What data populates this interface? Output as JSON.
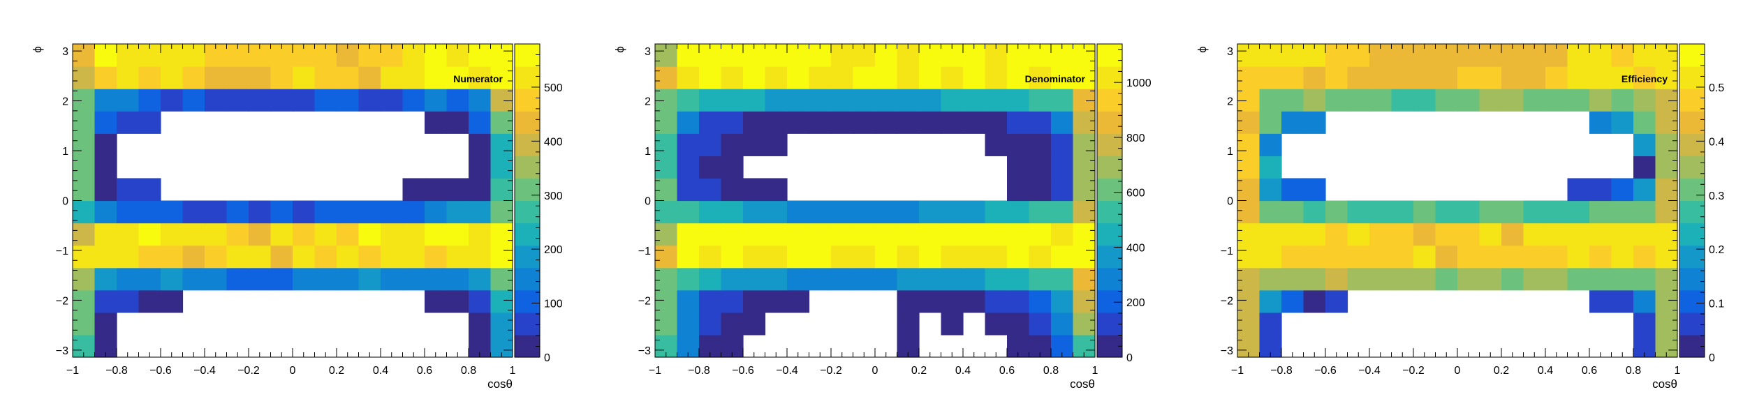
{
  "colors": {
    "palette": [
      "#352a87",
      "#2743c9",
      "#0f63e0",
      "#0f82d4",
      "#1498c9",
      "#1cb0b8",
      "#38bda0",
      "#6cc27c",
      "#a1bd5e",
      "#ccb748",
      "#ecb936",
      "#fbcd28",
      "#f6e516",
      "#f9fb0e"
    ],
    "frame": "#000000",
    "background": "#ffffff"
  },
  "chart_data": [
    {
      "type": "heatmap",
      "title": "Numerator",
      "xlabel": "cosθ",
      "ylabel": "ϕ",
      "xlim": [
        -1,
        1
      ],
      "ylim": [
        -3.14159,
        3.14159
      ],
      "x_ticks": [
        -1,
        -0.8,
        -0.6,
        -0.4,
        -0.2,
        0,
        0.2,
        0.4,
        0.6,
        0.8,
        1
      ],
      "x_tick_labels": [
        "−1",
        "−0.8",
        "−0.6",
        "−0.4",
        "−0.2",
        "0",
        "0.2",
        "0.4",
        "0.6",
        "0.8",
        "1"
      ],
      "y_ticks": [
        -3,
        -2,
        -1,
        0,
        1,
        2,
        3
      ],
      "y_tick_labels": [
        "−3",
        "−2",
        "−1",
        "0",
        "1",
        "2",
        "3"
      ],
      "zlim": [
        0,
        580
      ],
      "z_ticks": [
        0,
        100,
        200,
        300,
        400,
        500
      ],
      "z_tick_labels": [
        "0",
        "100",
        "200",
        "300",
        "400",
        "500"
      ],
      "bins_x": 20,
      "bins_y": 14,
      "values": [
        [
          280,
          30,
          0,
          0,
          0,
          0,
          0,
          0,
          0,
          0,
          0,
          0,
          0,
          0,
          0,
          0,
          0,
          0,
          30,
          180
        ],
        [
          300,
          30,
          0,
          0,
          0,
          0,
          0,
          0,
          0,
          0,
          0,
          0,
          0,
          0,
          0,
          0,
          0,
          0,
          30,
          190
        ],
        [
          330,
          60,
          60,
          30,
          30,
          0,
          0,
          0,
          0,
          0,
          0,
          0,
          0,
          0,
          0,
          0,
          30,
          30,
          60,
          240
        ],
        [
          340,
          170,
          160,
          150,
          180,
          150,
          130,
          120,
          120,
          110,
          150,
          140,
          140,
          170,
          160,
          160,
          150,
          160,
          200,
          300
        ],
        [
          500,
          520,
          500,
          480,
          470,
          450,
          480,
          500,
          530,
          440,
          520,
          480,
          500,
          470,
          500,
          520,
          470,
          520,
          500,
          560
        ],
        [
          400,
          530,
          510,
          550,
          500,
          520,
          500,
          470,
          440,
          500,
          460,
          510,
          460,
          570,
          500,
          530,
          550,
          560,
          510,
          580
        ],
        [
          240,
          160,
          120,
          110,
          120,
          80,
          80,
          100,
          80,
          90,
          80,
          110,
          110,
          100,
          100,
          110,
          130,
          170,
          180,
          300
        ],
        [
          320,
          30,
          60,
          60,
          0,
          0,
          0,
          0,
          0,
          0,
          0,
          0,
          0,
          0,
          0,
          30,
          30,
          30,
          30,
          260
        ],
        [
          310,
          30,
          0,
          0,
          0,
          0,
          0,
          0,
          0,
          0,
          0,
          0,
          0,
          0,
          0,
          0,
          0,
          0,
          30,
          230
        ],
        [
          300,
          30,
          0,
          0,
          0,
          0,
          0,
          0,
          0,
          0,
          0,
          0,
          0,
          0,
          0,
          0,
          0,
          0,
          30,
          240
        ],
        [
          300,
          100,
          60,
          60,
          0,
          0,
          0,
          0,
          0,
          0,
          0,
          0,
          0,
          0,
          0,
          0,
          40,
          30,
          90,
          330
        ],
        [
          330,
          140,
          130,
          100,
          80,
          100,
          80,
          50,
          60,
          80,
          80,
          100,
          120,
          80,
          80,
          120,
          130,
          110,
          160,
          380
        ],
        [
          390,
          480,
          500,
          470,
          520,
          470,
          440,
          450,
          440,
          460,
          510,
          490,
          460,
          440,
          500,
          520,
          560,
          540,
          510,
          580
        ],
        [
          430,
          540,
          530,
          530,
          520,
          500,
          470,
          460,
          460,
          470,
          480,
          470,
          450,
          460,
          480,
          530,
          550,
          520,
          540,
          580
        ]
      ]
    },
    {
      "type": "heatmap",
      "title": "Denominator",
      "xlabel": "cosθ",
      "ylabel": "ϕ",
      "xlim": [
        -1,
        1
      ],
      "ylim": [
        -3.14159,
        3.14159
      ],
      "x_ticks": [
        -1,
        -0.8,
        -0.6,
        -0.4,
        -0.2,
        0,
        0.2,
        0.4,
        0.6,
        0.8,
        1
      ],
      "x_tick_labels": [
        "−1",
        "−0.8",
        "−0.6",
        "−0.4",
        "−0.2",
        "0",
        "0.2",
        "0.4",
        "0.6",
        "0.8",
        "1"
      ],
      "y_ticks": [
        -3,
        -2,
        -1,
        0,
        1,
        2,
        3
      ],
      "y_tick_labels": [
        "−3",
        "−2",
        "−1",
        "0",
        "1",
        "2",
        "3"
      ],
      "zlim": [
        0,
        1140
      ],
      "z_ticks": [
        0,
        200,
        400,
        600,
        800,
        1000
      ],
      "z_tick_labels": [
        "0",
        "200",
        "400",
        "600",
        "800",
        "1000"
      ],
      "bins_x": 20,
      "bins_y": 14,
      "values": [
        [
          540,
          250,
          80,
          80,
          0,
          0,
          0,
          0,
          0,
          0,
          0,
          80,
          0,
          0,
          0,
          0,
          80,
          80,
          200,
          560
        ],
        [
          600,
          260,
          140,
          80,
          80,
          0,
          0,
          0,
          0,
          0,
          0,
          80,
          0,
          80,
          0,
          80,
          80,
          140,
          260,
          680
        ],
        [
          640,
          300,
          160,
          100,
          80,
          80,
          80,
          0,
          0,
          0,
          0,
          80,
          80,
          80,
          80,
          100,
          160,
          200,
          340,
          760
        ],
        [
          620,
          500,
          430,
          380,
          350,
          330,
          320,
          310,
          300,
          300,
          320,
          330,
          350,
          380,
          400,
          430,
          470,
          500,
          560,
          840
        ],
        [
          880,
          1080,
          1050,
          1060,
          1040,
          1050,
          1080,
          1060,
          1050,
          1040,
          1070,
          1040,
          1060,
          1050,
          1050,
          1040,
          1080,
          1030,
          1060,
          1140
        ],
        [
          720,
          1060,
          1100,
          1080,
          1120,
          1100,
          1080,
          1100,
          1090,
          1100,
          1080,
          1100,
          1120,
          1080,
          1070,
          1110,
          1100,
          1080,
          1050,
          1100
        ],
        [
          560,
          540,
          460,
          420,
          390,
          330,
          320,
          300,
          280,
          300,
          300,
          310,
          330,
          340,
          380,
          410,
          430,
          490,
          560,
          760
        ],
        [
          600,
          160,
          120,
          80,
          80,
          80,
          0,
          0,
          0,
          0,
          0,
          0,
          0,
          0,
          0,
          0,
          80,
          80,
          160,
          720
        ],
        [
          560,
          140,
          80,
          80,
          0,
          0,
          0,
          0,
          0,
          0,
          0,
          0,
          0,
          0,
          0,
          0,
          80,
          80,
          140,
          700
        ],
        [
          560,
          160,
          120,
          80,
          80,
          80,
          0,
          0,
          0,
          0,
          0,
          0,
          0,
          0,
          0,
          80,
          80,
          80,
          160,
          700
        ],
        [
          600,
          300,
          160,
          100,
          80,
          80,
          80,
          80,
          80,
          80,
          80,
          80,
          80,
          80,
          80,
          80,
          100,
          140,
          260,
          780
        ],
        [
          640,
          520,
          460,
          430,
          410,
          380,
          360,
          330,
          330,
          340,
          350,
          380,
          400,
          420,
          430,
          440,
          480,
          520,
          560,
          820
        ],
        [
          880,
          1040,
          1060,
          1050,
          1070,
          1050,
          1060,
          1040,
          1050,
          1070,
          1060,
          1040,
          1080,
          1050,
          1070,
          1050,
          1060,
          1040,
          1060,
          1140
        ],
        [
          720,
          1070,
          1080,
          1060,
          1080,
          1060,
          1070,
          1060,
          1040,
          1050,
          1060,
          1040,
          1060,
          1070,
          1060,
          1050,
          1060,
          1080,
          1060,
          1100
        ]
      ]
    },
    {
      "type": "heatmap",
      "title": "Efficiency",
      "xlabel": "cosθ",
      "ylabel": "ϕ",
      "xlim": [
        -1,
        1
      ],
      "ylim": [
        -3.14159,
        3.14159
      ],
      "x_ticks": [
        -1,
        -0.8,
        -0.6,
        -0.4,
        -0.2,
        0,
        0.2,
        0.4,
        0.6,
        0.8,
        1
      ],
      "x_tick_labels": [
        "−1",
        "−0.8",
        "−0.6",
        "−0.4",
        "−0.2",
        "0",
        "0.2",
        "0.4",
        "0.6",
        "0.8",
        "1"
      ],
      "y_ticks": [
        -3,
        -2,
        -1,
        0,
        1,
        2,
        3
      ],
      "y_tick_labels": [
        "−3",
        "−2",
        "−1",
        "0",
        "1",
        "2",
        "3"
      ],
      "zlim": [
        0,
        0.58
      ],
      "z_ticks": [
        0,
        0.1,
        0.2,
        0.3,
        0.4,
        0.5
      ],
      "z_tick_labels": [
        "0",
        "0.1",
        "0.2",
        "0.3",
        "0.4",
        "0.5"
      ],
      "bins_x": 20,
      "bins_y": 14,
      "values": [
        [
          0.38,
          0.06,
          0,
          0,
          0,
          0,
          0,
          0,
          0,
          0,
          0,
          0,
          0,
          0,
          0,
          0,
          0,
          0,
          0.06,
          0.36
        ],
        [
          0.38,
          0.06,
          0,
          0,
          0,
          0,
          0,
          0,
          0,
          0,
          0,
          0,
          0,
          0,
          0,
          0,
          0,
          0,
          0.06,
          0.36
        ],
        [
          0.4,
          0.18,
          0.12,
          0.04,
          0.06,
          0,
          0,
          0,
          0,
          0,
          0,
          0,
          0,
          0,
          0,
          0,
          0.06,
          0.05,
          0.14,
          0.36
        ],
        [
          0.4,
          0.35,
          0.35,
          0.36,
          0.4,
          0.35,
          0.34,
          0.34,
          0.34,
          0.32,
          0.36,
          0.34,
          0.32,
          0.36,
          0.35,
          0.32,
          0.3,
          0.3,
          0.32,
          0.36
        ],
        [
          0.5,
          0.5,
          0.48,
          0.47,
          0.46,
          0.47,
          0.46,
          0.48,
          0.5,
          0.44,
          0.48,
          0.46,
          0.48,
          0.47,
          0.48,
          0.5,
          0.46,
          0.5,
          0.48,
          0.5
        ],
        [
          0.5,
          0.52,
          0.5,
          0.51,
          0.48,
          0.5,
          0.49,
          0.47,
          0.44,
          0.48,
          0.46,
          0.5,
          0.44,
          0.53,
          0.5,
          0.5,
          0.52,
          0.53,
          0.5,
          0.53
        ],
        [
          0.42,
          0.3,
          0.29,
          0.28,
          0.3,
          0.26,
          0.26,
          0.28,
          0.3,
          0.28,
          0.28,
          0.3,
          0.3,
          0.28,
          0.27,
          0.28,
          0.3,
          0.3,
          0.32,
          0.38
        ],
        [
          0.44,
          0.18,
          0.12,
          0.12,
          0,
          0,
          0,
          0,
          0,
          0,
          0,
          0,
          0,
          0,
          0,
          0.07,
          0.06,
          0.1,
          0.18,
          0.38
        ],
        [
          0.46,
          0.22,
          0,
          0,
          0,
          0,
          0,
          0,
          0,
          0,
          0,
          0,
          0,
          0,
          0,
          0,
          0,
          0,
          0.04,
          0.34
        ],
        [
          0.46,
          0.16,
          0,
          0,
          0,
          0,
          0,
          0,
          0,
          0,
          0,
          0,
          0,
          0,
          0,
          0,
          0,
          0,
          0.18,
          0.36
        ],
        [
          0.44,
          0.3,
          0.14,
          0.16,
          0,
          0,
          0,
          0,
          0,
          0,
          0,
          0,
          0,
          0,
          0,
          0,
          0.14,
          0.18,
          0.3,
          0.38
        ],
        [
          0.46,
          0.3,
          0.32,
          0.34,
          0.3,
          0.32,
          0.3,
          0.28,
          0.28,
          0.3,
          0.32,
          0.34,
          0.34,
          0.3,
          0.3,
          0.32,
          0.34,
          0.32,
          0.34,
          0.4
        ],
        [
          0.48,
          0.46,
          0.47,
          0.45,
          0.48,
          0.44,
          0.42,
          0.43,
          0.42,
          0.43,
          0.48,
          0.47,
          0.43,
          0.42,
          0.47,
          0.5,
          0.52,
          0.51,
          0.48,
          0.52
        ],
        [
          0.5,
          0.51,
          0.5,
          0.51,
          0.48,
          0.47,
          0.44,
          0.43,
          0.44,
          0.45,
          0.45,
          0.45,
          0.43,
          0.43,
          0.45,
          0.5,
          0.52,
          0.48,
          0.51,
          0.53
        ]
      ]
    }
  ]
}
